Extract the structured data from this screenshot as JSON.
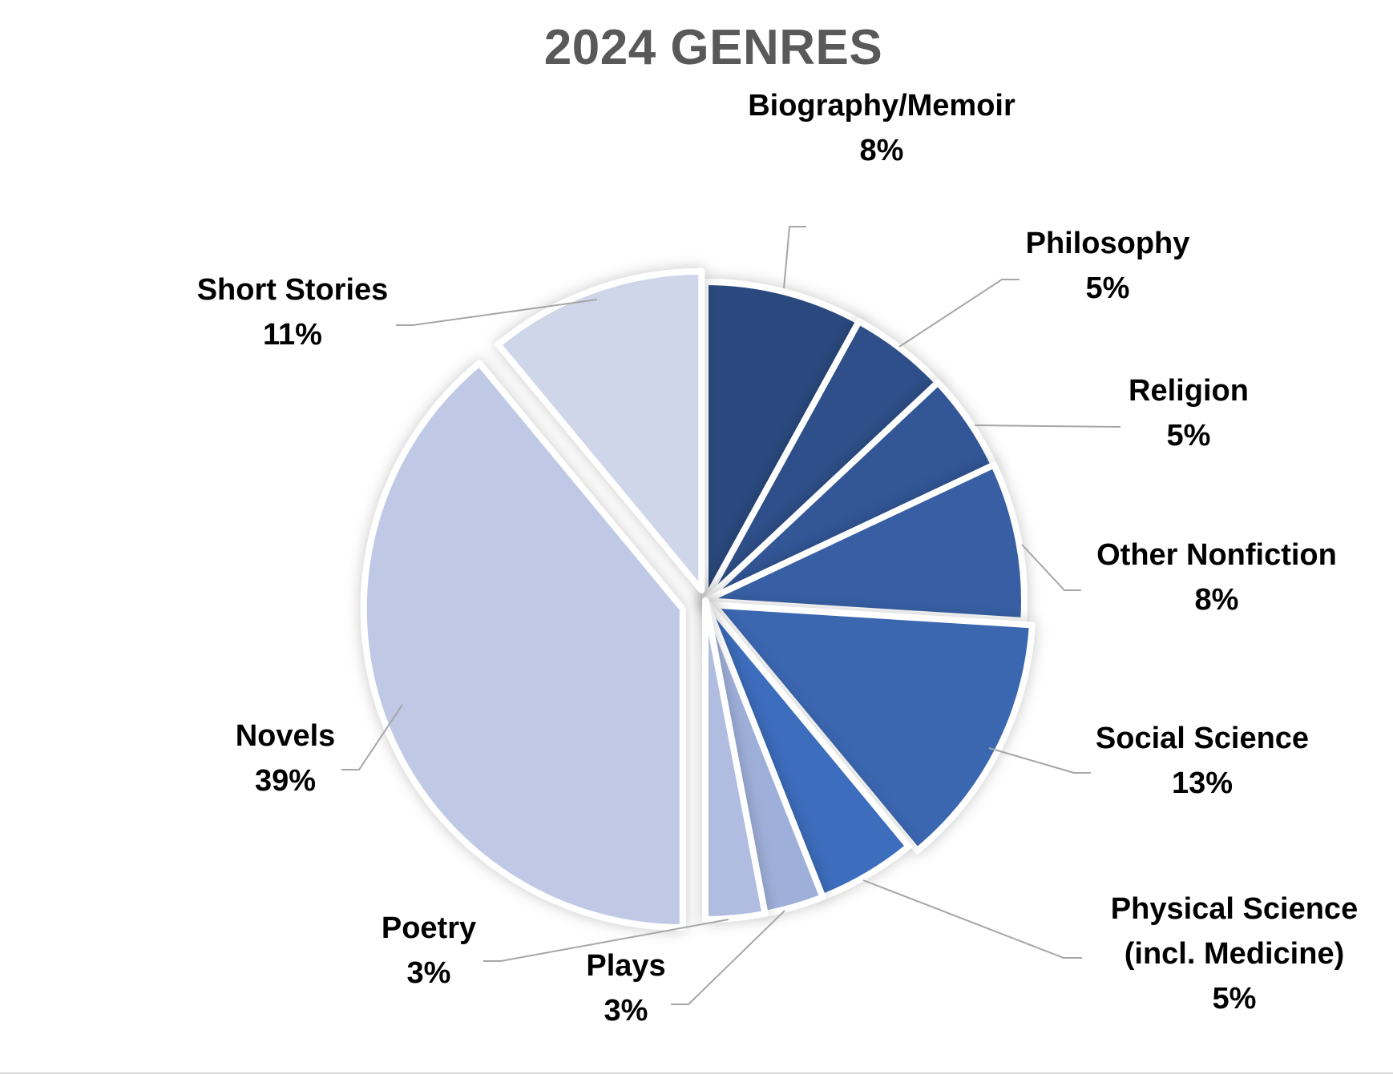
{
  "chart_data": {
    "type": "pie",
    "title": "2024 GENRES",
    "slices": [
      {
        "name": "Biography/Memoir",
        "label_lines": [
          "Biography/Memoir"
        ],
        "value": 8,
        "value_label": "8%",
        "color": "#2b4a7e"
      },
      {
        "name": "Philosophy",
        "label_lines": [
          "Philosophy"
        ],
        "value": 5,
        "value_label": "5%",
        "color": "#2f5089"
      },
      {
        "name": "Religion",
        "label_lines": [
          "Religion"
        ],
        "value": 5,
        "value_label": "5%",
        "color": "#335796"
      },
      {
        "name": "Other Nonfiction",
        "label_lines": [
          "Other Nonfiction"
        ],
        "value": 8,
        "value_label": "8%",
        "color": "#375ea3"
      },
      {
        "name": "Social Science",
        "label_lines": [
          "Social Science"
        ],
        "value": 13,
        "value_label": "13%",
        "color": "#3b66b0"
      },
      {
        "name": "Physical Science (incl. Medicine)",
        "label_lines": [
          "Physical Science",
          "(incl. Medicine)"
        ],
        "value": 5,
        "value_label": "5%",
        "color": "#3e6dbd"
      },
      {
        "name": "Plays",
        "label_lines": [
          "Plays"
        ],
        "value": 3,
        "value_label": "3%",
        "color": "#9eafd9"
      },
      {
        "name": "Poetry",
        "label_lines": [
          "Poetry"
        ],
        "value": 3,
        "value_label": "3%",
        "color": "#b0bde0"
      },
      {
        "name": "Novels",
        "label_lines": [
          "Novels"
        ],
        "value": 39,
        "value_label": "39%",
        "color": "#bfc9e5"
      },
      {
        "name": "Short Stories",
        "label_lines": [
          "Short Stories"
        ],
        "value": 11,
        "value_label": "11%",
        "color": "#cfd6ea"
      }
    ],
    "legend": "none"
  }
}
